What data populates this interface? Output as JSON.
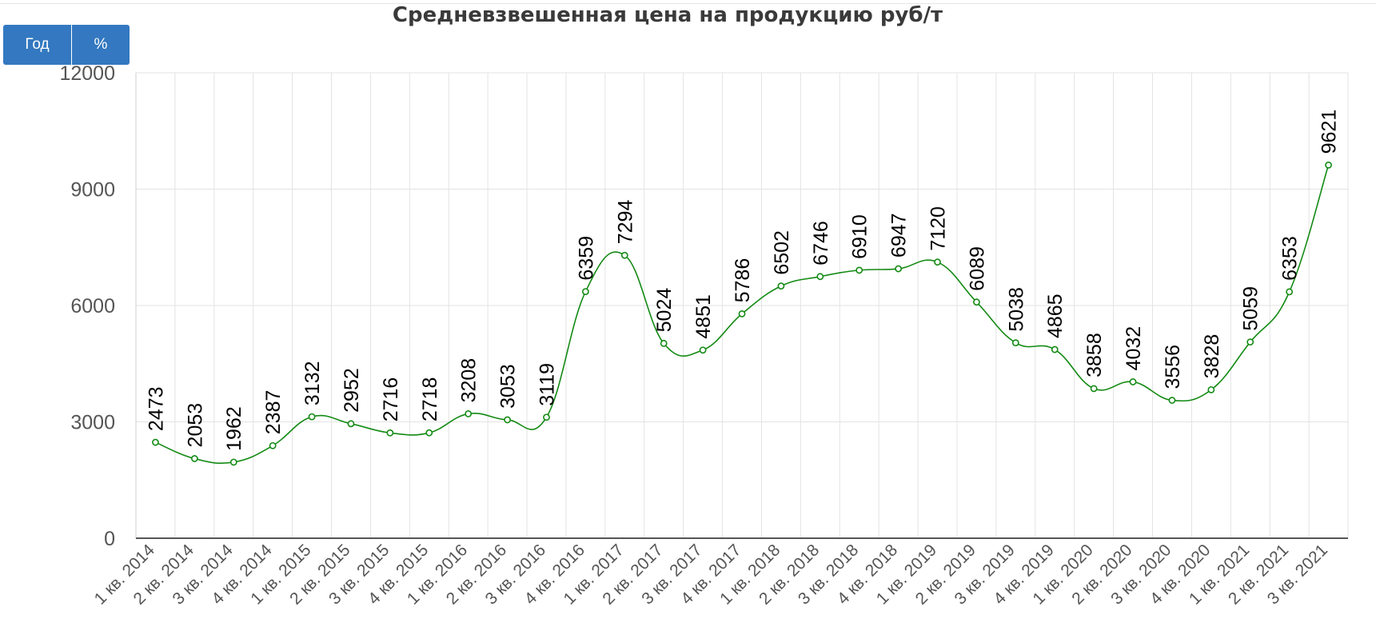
{
  "buttons": {
    "year_label": "Год",
    "percent_label": "%"
  },
  "chart_data": {
    "type": "line",
    "title": "Средневзвешенная цена на продукцию руб/т",
    "xlabel": "",
    "ylabel": "",
    "ylim": [
      0,
      12000
    ],
    "yticks": [
      0,
      3000,
      6000,
      9000,
      12000
    ],
    "grid": true,
    "line_color": "#138a13",
    "categories": [
      "1 кв. 2014",
      "2 кв. 2014",
      "3 кв. 2014",
      "4 кв. 2014",
      "1 кв. 2015",
      "2 кв. 2015",
      "3 кв. 2015",
      "4 кв. 2015",
      "1 кв. 2016",
      "2 кв. 2016",
      "3 кв. 2016",
      "4 кв. 2016",
      "1 кв. 2017",
      "2 кв. 2017",
      "3 кв. 2017",
      "4 кв. 2017",
      "1 кв. 2018",
      "2 кв. 2018",
      "3 кв. 2018",
      "4 кв. 2018",
      "1 кв. 2019",
      "2 кв. 2019",
      "3 кв. 2019",
      "4 кв. 2019",
      "1 кв. 2020",
      "2 кв. 2020",
      "3 кв. 2020",
      "4 кв. 2020",
      "1 кв. 2021",
      "2 кв. 2021",
      "3 кв. 2021"
    ],
    "values": [
      2473,
      2053,
      1962,
      2387,
      3132,
      2952,
      2716,
      2718,
      3208,
      3053,
      3119,
      6359,
      7294,
      5024,
      4851,
      5786,
      6502,
      6746,
      6910,
      6947,
      7120,
      6089,
      5038,
      4865,
      3858,
      4032,
      3556,
      3828,
      5059,
      6353,
      9621
    ]
  }
}
